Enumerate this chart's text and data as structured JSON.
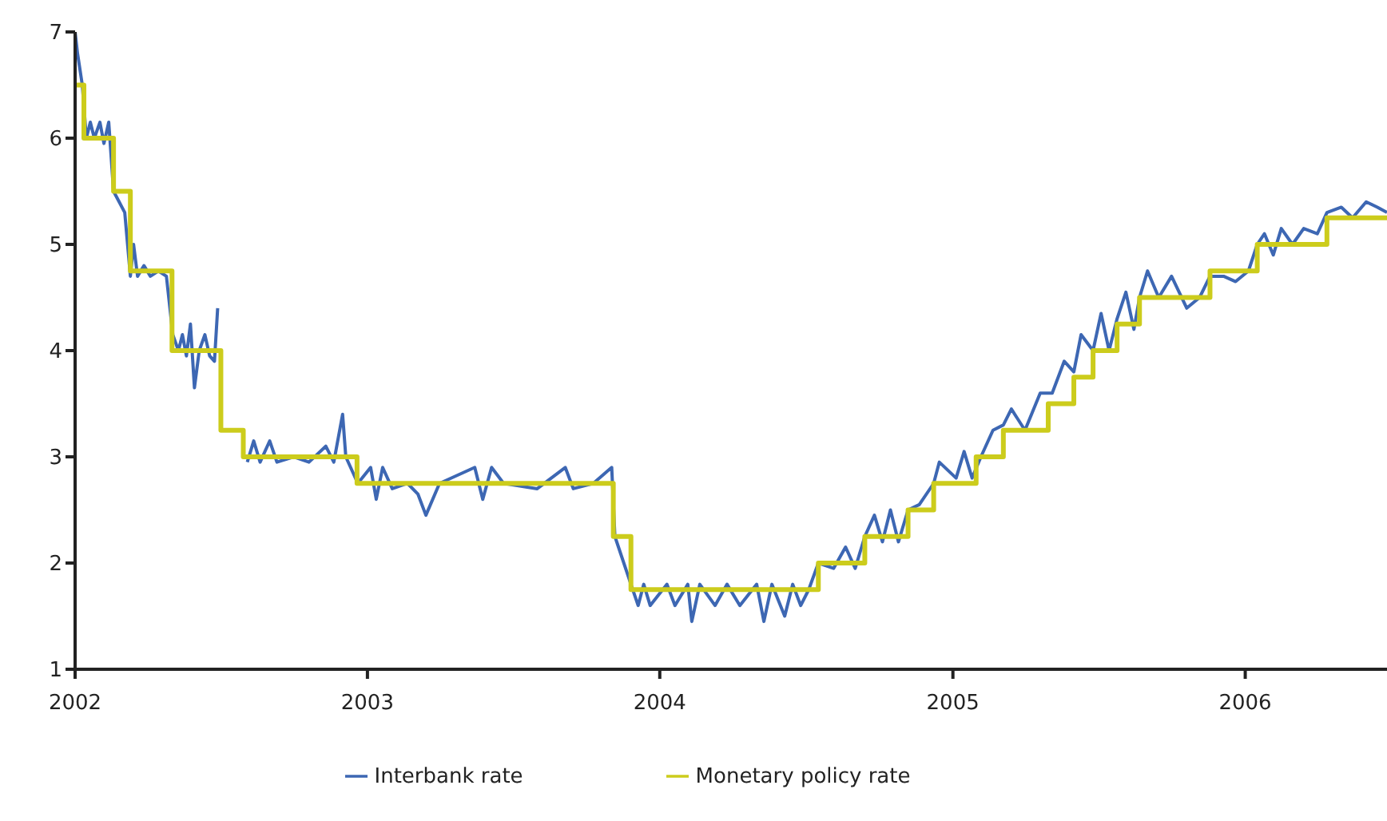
{
  "chart_data": {
    "type": "line",
    "xlim": [
      "2002-01-01",
      "2006-06-27"
    ],
    "xticks": [
      "2002",
      "2003",
      "2004",
      "2005",
      "2006"
    ],
    "ylim": [
      1,
      7
    ],
    "yticks": [
      1,
      2,
      3,
      4,
      5,
      6,
      7
    ],
    "grid": false,
    "legend": "bottom",
    "marker": "none",
    "line_style": "solid",
    "series": [
      {
        "name": "Interbank rate",
        "type": "line",
        "color": "#3d67b3",
        "x": [
          "2002-01-01",
          "2002-01-04",
          "2002-01-10",
          "2002-01-15",
          "2002-01-20",
          "2002-01-25",
          "2002-02-01",
          "2002-02-06",
          "2002-02-12",
          "2002-02-18",
          "2002-02-25",
          "2002-03-04",
          "2002-03-11",
          "2002-03-15",
          "2002-03-20",
          "2002-03-28",
          "2002-04-05",
          "2002-04-15",
          "2002-04-25",
          "2002-05-03",
          "2002-05-10",
          "2002-05-15",
          "2002-05-20",
          "2002-05-25",
          "2002-05-30",
          "2002-06-05",
          "2002-06-12",
          "2002-06-18",
          "2002-06-24",
          "2002-06-28",
          "2002-07-03",
          "2002-07-30",
          "2002-08-04",
          "2002-08-12",
          "2002-08-20",
          "2002-09-01",
          "2002-09-10",
          "2002-10-01",
          "2002-10-20",
          "2002-11-10",
          "2002-11-20",
          "2002-12-01",
          "2002-12-05",
          "2002-12-20",
          "2003-01-05",
          "2003-01-12",
          "2003-01-20",
          "2003-02-01",
          "2003-02-20",
          "2003-03-05",
          "2003-03-15",
          "2003-04-01",
          "2003-05-15",
          "2003-05-25",
          "2003-06-05",
          "2003-06-20",
          "2003-08-01",
          "2003-09-05",
          "2003-09-15",
          "2003-10-10",
          "2003-11-02",
          "2003-11-06",
          "2003-11-26",
          "2003-12-05",
          "2003-12-12",
          "2003-12-20",
          "2004-01-10",
          "2004-01-20",
          "2004-02-05",
          "2004-02-10",
          "2004-02-20",
          "2004-03-10",
          "2004-03-25",
          "2004-04-10",
          "2004-05-01",
          "2004-05-10",
          "2004-05-20",
          "2004-06-05",
          "2004-06-15",
          "2004-06-25",
          "2004-07-05",
          "2004-07-17",
          "2004-08-05",
          "2004-08-20",
          "2004-09-01",
          "2004-09-13",
          "2004-09-25",
          "2004-10-05",
          "2004-10-15",
          "2004-10-25",
          "2004-11-06",
          "2004-11-20",
          "2004-12-08",
          "2004-12-15",
          "2005-01-05",
          "2005-01-15",
          "2005-01-25",
          "2005-02-05",
          "2005-02-20",
          "2005-03-05",
          "2005-03-15",
          "2005-04-01",
          "2005-04-20",
          "2005-05-05",
          "2005-05-20",
          "2005-06-01",
          "2005-06-10",
          "2005-06-25",
          "2005-07-05",
          "2005-07-15",
          "2005-07-25",
          "2005-08-05",
          "2005-08-15",
          "2005-08-22",
          "2005-09-01",
          "2005-09-15",
          "2005-10-01",
          "2005-10-20",
          "2005-11-05",
          "2005-11-18",
          "2005-12-05",
          "2005-12-20",
          "2006-01-05",
          "2006-01-16",
          "2006-01-25",
          "2006-02-05",
          "2006-02-15",
          "2006-03-01",
          "2006-03-15",
          "2006-04-01",
          "2006-04-13",
          "2006-05-01",
          "2006-05-15",
          "2006-06-01",
          "2006-06-15",
          "2006-06-27"
        ],
        "values": [
          7.0,
          6.8,
          6.5,
          6.0,
          6.15,
          6.0,
          6.15,
          5.95,
          6.15,
          5.5,
          5.4,
          5.3,
          4.7,
          5.0,
          4.7,
          4.8,
          4.7,
          4.75,
          4.7,
          4.15,
          4.0,
          4.15,
          3.95,
          4.25,
          3.65,
          4.0,
          4.15,
          3.95,
          3.9,
          4.4,
          null,
          null,
          2.95,
          3.15,
          2.95,
          3.15,
          2.95,
          3.0,
          2.95,
          3.1,
          2.95,
          3.4,
          3.0,
          2.75,
          2.9,
          2.6,
          2.9,
          2.7,
          2.75,
          2.65,
          2.45,
          2.75,
          2.9,
          2.6,
          2.9,
          2.75,
          2.7,
          2.9,
          2.7,
          2.75,
          2.9,
          2.25,
          1.8,
          1.6,
          1.8,
          1.6,
          1.8,
          1.6,
          1.8,
          1.45,
          1.8,
          1.6,
          1.8,
          1.6,
          1.8,
          1.45,
          1.8,
          1.5,
          1.8,
          1.6,
          1.75,
          2.0,
          1.95,
          2.15,
          1.95,
          2.25,
          2.45,
          2.2,
          2.5,
          2.2,
          2.5,
          2.55,
          2.75,
          2.95,
          2.8,
          3.05,
          2.8,
          3.0,
          3.25,
          3.3,
          3.45,
          3.25,
          3.6,
          3.6,
          3.9,
          3.8,
          4.15,
          4.0,
          4.35,
          4.0,
          4.3,
          4.55,
          4.2,
          4.5,
          4.75,
          4.5,
          4.7,
          4.4,
          4.5,
          4.7,
          4.7,
          4.65,
          4.75,
          5.0,
          5.1,
          4.9,
          5.15,
          5.0,
          5.15,
          5.1,
          5.3,
          5.35,
          5.25,
          5.4,
          5.35,
          5.3
        ]
      },
      {
        "name": "Monetary policy rate",
        "type": "step",
        "color": "#cccc1c",
        "x": [
          "2002-01-01",
          "2002-01-12",
          "2002-02-18",
          "2002-03-11",
          "2002-05-02",
          "2002-07-02",
          "2002-07-30",
          "2002-12-19",
          "2003-11-04",
          "2003-11-26",
          "2004-07-17",
          "2004-09-13",
          "2004-11-06",
          "2004-12-08",
          "2005-01-30",
          "2005-03-05",
          "2005-04-30",
          "2005-06-01",
          "2005-06-25",
          "2005-07-25",
          "2005-08-22",
          "2005-11-18",
          "2006-01-16",
          "2006-04-13",
          "2006-06-27"
        ],
        "values": [
          6.5,
          6.0,
          5.5,
          4.75,
          4.0,
          3.25,
          3.0,
          2.75,
          2.25,
          1.75,
          2.0,
          2.25,
          2.5,
          2.75,
          3.0,
          3.25,
          3.5,
          3.75,
          4.0,
          4.25,
          4.5,
          4.75,
          5.0,
          5.25,
          5.25
        ]
      }
    ]
  }
}
